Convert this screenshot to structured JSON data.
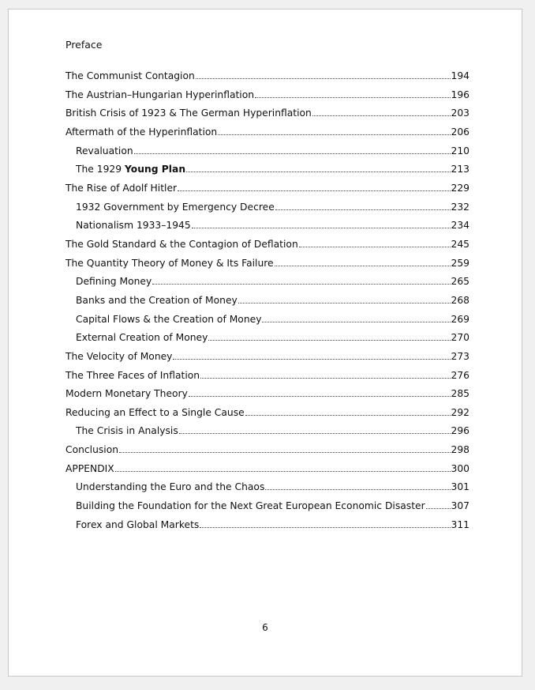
{
  "preface": "Preface",
  "toc": [
    {
      "title": "The Communist Contagion",
      "page": "194",
      "level": 1
    },
    {
      "title": "The Austrian–Hungarian Hyperinflation",
      "page": "196",
      "level": 1
    },
    {
      "title": "British Crisis of 1923 & The German Hyperinflation",
      "page": "203",
      "level": 1
    },
    {
      "title": "Aftermath of the Hyperinflation",
      "page": "206",
      "level": 1
    },
    {
      "title": "Revaluation",
      "page": "210",
      "level": 2
    },
    {
      "title": "The 1929 ",
      "bold": "Young Plan",
      "page": "213",
      "level": 2
    },
    {
      "title": "The Rise of Adolf Hitler",
      "page": "229",
      "level": 1
    },
    {
      "title": "1932 Government by Emergency Decree",
      "page": "232",
      "level": 2
    },
    {
      "title": "Nationalism 1933–1945",
      "page": "234",
      "level": 2
    },
    {
      "title": "The Gold Standard & the Contagion of Deflation",
      "page": "245",
      "level": 1
    },
    {
      "title": "The Quantity Theory of Money & Its Failure",
      "page": "259",
      "level": 1
    },
    {
      "title": "Defining Money",
      "page": "265",
      "level": 2
    },
    {
      "title": "Banks and the Creation of Money",
      "page": "268",
      "level": 2
    },
    {
      "title": "Capital Flows & the Creation of Money",
      "page": "269",
      "level": 2
    },
    {
      "title": "External Creation of Money",
      "page": "270",
      "level": 2
    },
    {
      "title": "The Velocity of Money",
      "page": "273",
      "level": 1
    },
    {
      "title": "The Three Faces of Inflation",
      "page": "276",
      "level": 1
    },
    {
      "title": "Modern Monetary Theory",
      "page": "285",
      "level": 1
    },
    {
      "title": "Reducing an Effect to a Single Cause",
      "page": "292",
      "level": 1
    },
    {
      "title": "The Crisis in Analysis",
      "page": "296",
      "level": 2
    },
    {
      "title": "Conclusion",
      "page": "298",
      "level": 1
    },
    {
      "title": "APPENDIX",
      "page": "300",
      "level": 1
    },
    {
      "title": "Understanding the Euro and the Chaos",
      "page": "301",
      "level": 2
    },
    {
      "title": "Building the Foundation for the Next Great European Economic Disaster",
      "page": "307",
      "level": 2
    },
    {
      "title": "Forex and Global Markets",
      "page": "311",
      "level": 2
    }
  ],
  "page_number": "6"
}
